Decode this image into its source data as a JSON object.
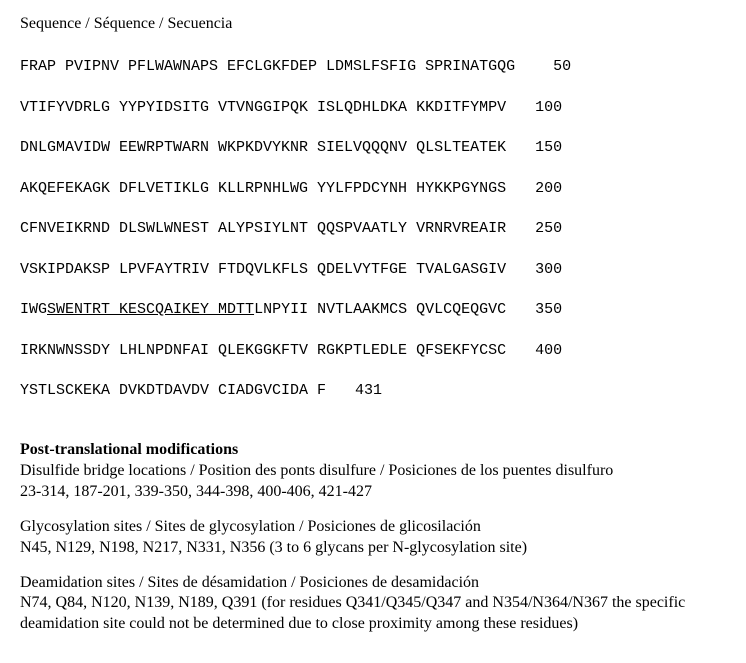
{
  "header": {
    "sequence_label": "Sequence / Séquence / Secuencia"
  },
  "sequence": {
    "rows": [
      {
        "pre": "FRAP PVIPNV PFLWAWNAPS EFCLGKFDEP LDMSLFSFIG SPRINATGQG",
        "u": "",
        "post": "",
        "num": "50"
      },
      {
        "pre": "VTIFYVDRLG YYPYIDSITG VTVNGGIPQK ISLQDHLDKA KKDITFYMPV",
        "u": "",
        "post": "",
        "num": "100"
      },
      {
        "pre": "DNLGMAVIDW EEWRPTWARN WKPKDVYKNR SIELVQQQNV QLSLTEATEK",
        "u": "",
        "post": "",
        "num": "150"
      },
      {
        "pre": "AKQEFEKAGK DFLVETIKLG KLLRPNHLWG YYLFPDCYNH HYKKPGYNGS",
        "u": "",
        "post": "",
        "num": "200"
      },
      {
        "pre": "CFNVEIKRND DLSWLWNEST ALYPSIYLNT QQSPVAATLY VRNRVREAIR",
        "u": "",
        "post": "",
        "num": "250"
      },
      {
        "pre": "VSKIPDAKSP LPVFAYTRIV FTDQVLKFLS QDELVYTFGE TVALGASGIV",
        "u": "",
        "post": "",
        "num": "300"
      },
      {
        "pre": "IWG",
        "u": "SWENTRT KESCQAIKEY MDTT",
        "post": "LNPYII NVTLAAKMCS QVLCQEQGVC",
        "num": "350"
      },
      {
        "pre": "IRKNWNSSDY LHLNPDNFAI QLEKGGKFTV RGKPTLEDLE QFSEKFYCSC",
        "u": "",
        "post": "",
        "num": "400"
      },
      {
        "pre": "YSTLSCKEKA DVKDTDAVDV CIADGVCIDA F",
        "u": "",
        "post": "",
        "num": "431"
      }
    ]
  },
  "ptm": {
    "title": "Post-translational modifications",
    "disulfide": {
      "label": "Disulfide bridge locations / Position des ponts disulfure / Posiciones de los puentes disulfuro",
      "value": "23-314, 187-201, 339-350, 344-398, 400-406, 421-427"
    },
    "glyco": {
      "label": "Glycosylation sites / Sites de glycosylation / Posiciones de glicosilación",
      "value": "N45, N129, N198, N217, N331, N356 (3 to 6 glycans per N-glycosylation site)"
    },
    "deamid": {
      "label": "Deamidation sites / Sites de désamidation / Posiciones de desamidación",
      "value": "N74, Q84, N120, N139, N189, Q391 (for residues Q341/Q345/Q347 and N354/N364/N367 the specific deamidation site could not be determined due to close proximity among these residues)"
    }
  }
}
